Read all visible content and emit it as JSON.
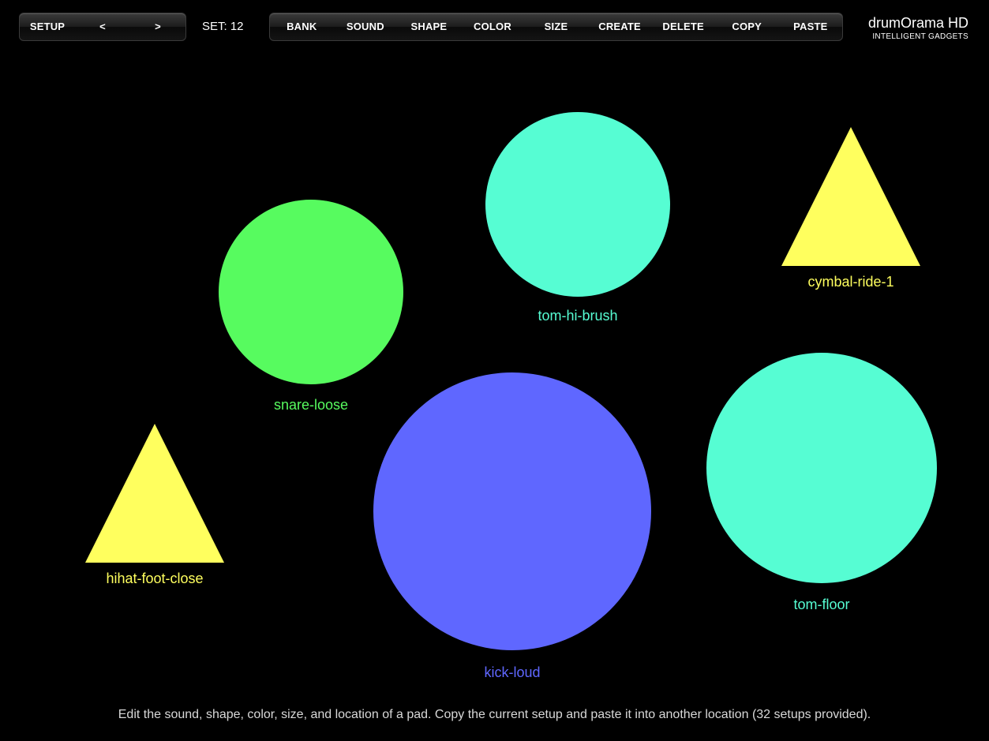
{
  "setup_nav": {
    "setup_label": "SETUP",
    "prev_label": "<",
    "next_label": ">"
  },
  "set_indicator": "SET: 12",
  "toolbar": {
    "bank_label": "BANK",
    "sound_label": "SOUND",
    "shape_label": "SHAPE",
    "color_label": "COLOR",
    "size_label": "SIZE",
    "create_label": "CREATE",
    "delete_label": "DELETE",
    "copy_label": "COPY",
    "paste_label": "PASTE"
  },
  "brand": {
    "title": "drumOrama HD",
    "subtitle": "INTELLIGENT GADGETS"
  },
  "pads": [
    {
      "name": "snare-loose",
      "shape": "circle",
      "color": "#57FB5F"
    },
    {
      "name": "tom-hi-brush",
      "shape": "circle",
      "color": "#56FDD3"
    },
    {
      "name": "cymbal-ride-1",
      "shape": "triangle",
      "color": "#FFFF5E"
    },
    {
      "name": "hihat-foot-close",
      "shape": "triangle",
      "color": "#FFFF5E"
    },
    {
      "name": "kick-loud",
      "shape": "circle",
      "color": "#5F67FF"
    },
    {
      "name": "tom-floor",
      "shape": "circle",
      "color": "#56FDD3"
    }
  ],
  "footer": {
    "help_text": "Edit the sound, shape, color, size, and location of a pad. Copy the current setup and paste it into another location (32 setups provided)."
  }
}
